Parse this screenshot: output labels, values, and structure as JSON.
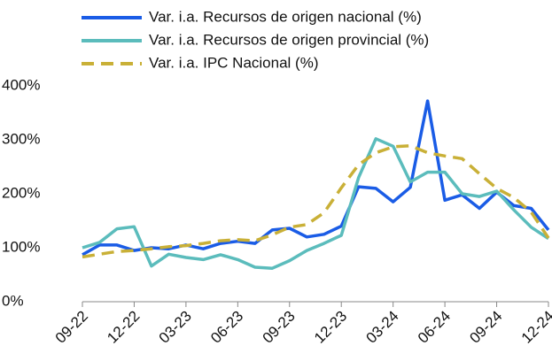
{
  "chart_data": {
    "type": "line",
    "categories": [
      "09-22",
      null,
      null,
      "12-22",
      null,
      null,
      "03-23",
      null,
      null,
      "06-23",
      null,
      null,
      "09-23",
      null,
      null,
      "12-23",
      null,
      null,
      "03-24",
      null,
      null,
      "06-24",
      null,
      null,
      "09-24",
      null,
      null,
      "12-24"
    ],
    "series": [
      {
        "name": "Var. i.a. Recursos de origen nacional (%)",
        "color": "#1a5ce6",
        "dashed": false,
        "values": [
          87,
          105,
          105,
          95,
          100,
          98,
          105,
          98,
          108,
          112,
          108,
          133,
          136,
          120,
          125,
          140,
          213,
          210,
          185,
          212,
          372,
          188,
          198,
          173,
          203,
          178,
          173,
          133
        ]
      },
      {
        "name": "Var. i.a. Recursos de origen provincial (%)",
        "color": "#5bbcbc",
        "dashed": false,
        "values": [
          100,
          110,
          135,
          139,
          66,
          88,
          82,
          78,
          87,
          78,
          64,
          62,
          76,
          95,
          108,
          123,
          230,
          302,
          288,
          222,
          240,
          240,
          200,
          195,
          205,
          170,
          138,
          117
        ]
      },
      {
        "name": "Var. i.a. IPC Nacional (%)",
        "color": "#c9b037",
        "dashed": true,
        "values": [
          83,
          88,
          93,
          95,
          98,
          102,
          104,
          108,
          113,
          115,
          113,
          124,
          138,
          143,
          165,
          211,
          254,
          276,
          287,
          289,
          276,
          270,
          265,
          237,
          210,
          193,
          166,
          118
        ]
      }
    ],
    "ylim": [
      0,
      400
    ],
    "yticks": [
      {
        "value": 0,
        "label": "0%"
      },
      {
        "value": 100,
        "label": "100%"
      },
      {
        "value": 200,
        "label": "200%"
      },
      {
        "value": 300,
        "label": "300%"
      },
      {
        "value": 400,
        "label": "400%"
      }
    ],
    "grid": false
  }
}
